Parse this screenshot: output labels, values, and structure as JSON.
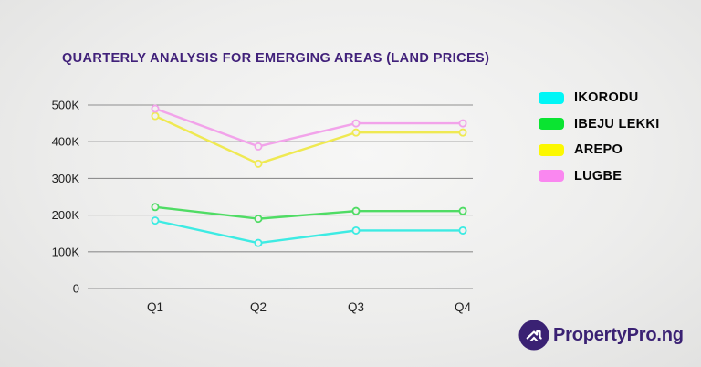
{
  "title": "QUARTERLY ANALYSIS FOR EMERGING AREAS (LAND PRICES)",
  "logo": {
    "text": "PropertyPro.ng",
    "icon": "house-in-circle"
  },
  "colors": {
    "title_text": "#41217A",
    "gridline": "#8f8f8f",
    "axis_text": "#1f1f1f",
    "legend_text": "#050505",
    "logo_purple": "#3A2173",
    "background": "#ededec"
  },
  "chart_data": {
    "type": "line",
    "title": "QUARTERLY ANALYSIS FOR EMERGING AREAS (LAND PRICES)",
    "xlabel": "",
    "ylabel": "",
    "categories": [
      "Q1",
      "Q2",
      "Q3",
      "Q4"
    ],
    "series": [
      {
        "name": "IKORODU",
        "line_color": "#3DEBE3",
        "legend_color": "#00F6F6",
        "values": [
          185000,
          124000,
          158000,
          158000
        ]
      },
      {
        "name": "IBEJU LEKKI",
        "line_color": "#4FDC64",
        "legend_color": "#0AE431",
        "values": [
          222000,
          190000,
          211000,
          211000
        ]
      },
      {
        "name": "AREPO",
        "line_color": "#EFE952",
        "legend_color": "#FCF800",
        "values": [
          470000,
          340000,
          425000,
          425000
        ]
      },
      {
        "name": "LUGBE",
        "line_color": "#F2A3EA",
        "legend_color": "#FA87F0",
        "values": [
          490000,
          387000,
          450000,
          450000
        ]
      }
    ],
    "ylim": [
      0,
      500000
    ],
    "yticks": [
      {
        "value": 500000,
        "label": "500K"
      },
      {
        "value": 400000,
        "label": "400K"
      },
      {
        "value": 300000,
        "label": "300K"
      },
      {
        "value": 200000,
        "label": "200K"
      },
      {
        "value": 100000,
        "label": "100K"
      },
      {
        "value": 0,
        "label": "0"
      }
    ],
    "grid": true,
    "legend_position": "right",
    "marker": "open-circle"
  }
}
